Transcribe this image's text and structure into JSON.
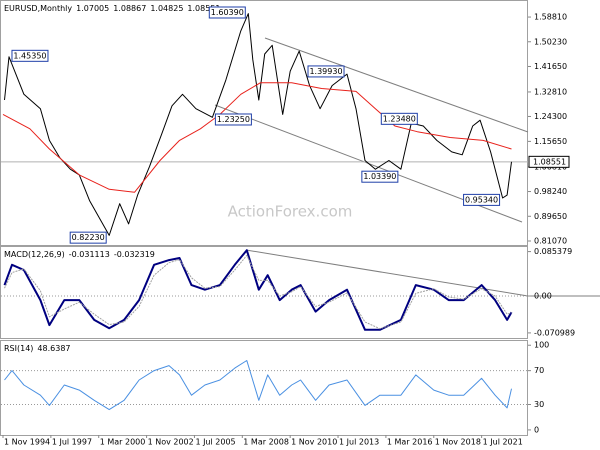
{
  "chart_data": [
    {
      "type": "line",
      "title": "EURUSD,Monthly",
      "watermark": "ActionForex.com",
      "last_bar": {
        "open": 1.07005,
        "high": 1.08867,
        "low": 1.04825
      },
      "xlim": [
        "1994-09-01",
        "2024-02-01"
      ],
      "ylim": [
        0.7968,
        1.6334
      ],
      "yticks": [
        {
          "value": 1.5881,
          "label": "1.58810"
        },
        {
          "value": 1.5023,
          "label": "1.50230"
        },
        {
          "value": 1.4165,
          "label": "1.41650"
        },
        {
          "value": 1.3281,
          "label": "1.32810"
        },
        {
          "value": 1.243,
          "label": "1.24300"
        },
        {
          "value": 1.1565,
          "label": "1.15650"
        },
        {
          "value": 1.0681,
          "label": "1.06810"
        },
        {
          "value": 0.9824,
          "label": "0.98240"
        },
        {
          "value": 0.8965,
          "label": "0.89650"
        },
        {
          "value": 0.8107,
          "label": "0.81070"
        }
      ],
      "x": [
        "1994-12-01",
        "1995-03-01",
        "1996-01-01",
        "1996-12-01",
        "1997-06-01",
        "1998-01-01",
        "1998-08-01",
        "1999-02-01",
        "1999-09-01",
        "2000-10-01",
        "2001-05-01",
        "2001-11-01",
        "2002-05-01",
        "2003-01-01",
        "2003-09-01",
        "2004-04-01",
        "2004-11-01",
        "2005-08-01",
        "2006-07-01",
        "2007-04-01",
        "2008-02-01",
        "2008-07-01",
        "2008-10-01",
        "2009-02-01",
        "2009-06-01",
        "2009-11-01",
        "2010-06-01",
        "2010-11-01",
        "2011-05-01",
        "2011-12-01",
        "2012-07-01",
        "2013-03-01",
        "2014-01-01",
        "2014-07-01",
        "2015-01-01",
        "2015-08-01",
        "2016-05-01",
        "2017-01-01",
        "2017-08-01",
        "2018-04-01",
        "2019-01-01",
        "2019-11-01",
        "2020-06-01",
        "2021-01-01",
        "2021-06-01",
        "2022-01-01",
        "2022-09-01",
        "2022-12-01",
        "2023-03-01"
      ],
      "series": [
        {
          "color": "#000000",
          "values": [
            1.3,
            1.45,
            1.32,
            1.27,
            1.16,
            1.1,
            1.06,
            1.04,
            0.95,
            0.83,
            0.94,
            0.87,
            0.97,
            1.07,
            1.18,
            1.28,
            1.32,
            1.27,
            1.24,
            1.37,
            1.54,
            1.6,
            1.44,
            1.3,
            1.46,
            1.49,
            1.25,
            1.4,
            1.47,
            1.35,
            1.27,
            1.35,
            1.39,
            1.27,
            1.09,
            1.06,
            1.09,
            1.06,
            1.22,
            1.21,
            1.16,
            1.12,
            1.11,
            1.21,
            1.23,
            1.12,
            0.96,
            0.97,
            1.08551
          ]
        },
        {
          "color": "#e8221c",
          "x": [
            "1994-11-01",
            "1996-05-01",
            "1997-06-01",
            "1999-02-01",
            "2000-10-01",
            "2002-03-01",
            "2003-08-01",
            "2004-09-01",
            "2005-11-01",
            "2006-12-01",
            "2008-02-01",
            "2009-03-01",
            "2010-12-01",
            "2012-08-01",
            "2014-07-01",
            "2015-08-01",
            "2016-09-01",
            "2017-12-01",
            "2019-10-01",
            "2021-08-01",
            "2023-03-01"
          ],
          "values": [
            1.25,
            1.2,
            1.13,
            1.04,
            0.99,
            0.98,
            1.09,
            1.16,
            1.2,
            1.25,
            1.32,
            1.36,
            1.36,
            1.34,
            1.33,
            1.27,
            1.21,
            1.19,
            1.17,
            1.16,
            1.13
          ]
        }
      ],
      "annotations": [
        {
          "x": "1995-03-01",
          "y": 1.4535,
          "label": "1.45350"
        },
        {
          "x": "2008-07-01",
          "y": 1.6039,
          "label": "1.60390"
        },
        {
          "x": "2006-07-01",
          "y": 1.2325,
          "label": "1.23250"
        },
        {
          "x": "2014-01-01",
          "y": 1.3993,
          "label": "1.39930"
        },
        {
          "x": "2018-02-01",
          "y": 1.2348,
          "label": "1.23480"
        },
        {
          "x": "2017-01-01",
          "y": 1.0339,
          "label": "1.03390"
        },
        {
          "x": "2022-09-01",
          "y": 0.9534,
          "label": "0.95340"
        },
        {
          "x": "2000-10-01",
          "y": 0.8223,
          "label": "0.82230"
        }
      ]
    },
    {
      "type": "line",
      "title": "MACD(12,26,9)",
      "xlim": [
        "1994-09-01",
        "2024-02-01"
      ],
      "ylim": [
        -0.0808,
        0.0942
      ],
      "yticks": [
        0.085379,
        {
          "value": 0,
          "label": "0.00"
        },
        -0.070989
      ],
      "levels": [
        0
      ],
      "x": [
        "1994-12-01",
        "1995-05-01",
        "1996-01-01",
        "1996-12-01",
        "1997-06-01",
        "1998-04-01",
        "1999-02-01",
        "1999-12-01",
        "2000-10-01",
        "2001-08-01",
        "2002-06-01",
        "2003-04-01",
        "2004-02-01",
        "2004-09-01",
        "2005-05-01",
        "2006-02-01",
        "2006-12-01",
        "2007-10-01",
        "2008-06-01",
        "2009-02-01",
        "2009-08-01",
        "2010-04-01",
        "2010-12-01",
        "2011-06-01",
        "2012-04-01",
        "2013-01-01",
        "2014-01-01",
        "2015-01-01",
        "2015-11-01",
        "2017-01-01",
        "2017-11-01",
        "2018-11-01",
        "2019-09-01",
        "2020-07-01",
        "2021-07-01",
        "2022-04-01",
        "2022-12-01",
        "2023-03-01"
      ],
      "series": [
        {
          "color": "#000080",
          "values": [
            0.021,
            0.06,
            0.05,
            -0.008,
            -0.056,
            -0.008,
            -0.008,
            -0.046,
            -0.062,
            -0.046,
            -0.008,
            0.06,
            0.069,
            0.073,
            0.021,
            0.012,
            0.021,
            0.06,
            0.088,
            0.012,
            0.04,
            -0.008,
            0.012,
            0.021,
            -0.03,
            -0.008,
            0.012,
            -0.065,
            -0.065,
            -0.046,
            0.021,
            0.012,
            -0.008,
            -0.008,
            0.021,
            -0.008,
            -0.046,
            -0.031113
          ]
        },
        {
          "color": "#a0a0a0",
          "values": [
            0.015,
            0.045,
            0.052,
            0.01,
            -0.04,
            -0.025,
            -0.012,
            -0.035,
            -0.055,
            -0.05,
            -0.02,
            0.04,
            0.064,
            0.07,
            0.035,
            0.015,
            0.018,
            0.05,
            0.078,
            0.03,
            0.03,
            0.0,
            0.008,
            0.018,
            -0.02,
            -0.012,
            0.006,
            -0.05,
            -0.063,
            -0.05,
            0.005,
            0.014,
            -0.002,
            -0.006,
            0.014,
            0.0,
            -0.035,
            -0.032319
          ]
        }
      ]
    },
    {
      "type": "line",
      "title": "RSI(14)",
      "xlim": [
        "1994-09-01",
        "2024-02-01"
      ],
      "ylim": [
        -6,
        105
      ],
      "yticks": [
        100,
        70,
        30,
        0
      ],
      "levels": [
        70,
        30
      ],
      "xticks": [
        {
          "value": "1994-11-01",
          "label": "1 Nov 1994"
        },
        {
          "value": "1997-07-01",
          "label": "1 Jul 1997"
        },
        {
          "value": "2000-03-01",
          "label": "1 Mar 2000"
        },
        {
          "value": "2002-11-01",
          "label": "1 Nov 2002"
        },
        {
          "value": "2005-07-01",
          "label": "1 Jul 2005"
        },
        {
          "value": "2008-03-01",
          "label": "1 Mar 2008"
        },
        {
          "value": "2010-11-01",
          "label": "1 Nov 2010"
        },
        {
          "value": "2013-07-01",
          "label": "1 Jul 2013"
        },
        {
          "value": "2016-03-01",
          "label": "1 Mar 2016"
        },
        {
          "value": "2018-11-01",
          "label": "1 Nov 2018"
        },
        {
          "value": "2021-07-01",
          "label": "1 Jul 2021"
        }
      ],
      "x": [
        "1994-12-01",
        "1995-05-01",
        "1996-01-01",
        "1996-12-01",
        "1997-06-01",
        "1998-04-01",
        "1999-02-01",
        "1999-12-01",
        "2000-10-01",
        "2001-08-01",
        "2002-06-01",
        "2003-04-01",
        "2004-02-01",
        "2004-09-01",
        "2005-05-01",
        "2006-02-01",
        "2006-12-01",
        "2007-10-01",
        "2008-06-01",
        "2009-02-01",
        "2009-08-01",
        "2010-04-01",
        "2010-12-01",
        "2011-06-01",
        "2012-04-01",
        "2013-01-01",
        "2014-01-01",
        "2015-01-01",
        "2015-11-01",
        "2017-01-01",
        "2017-11-01",
        "2018-11-01",
        "2019-09-01",
        "2020-07-01",
        "2021-07-01",
        "2022-04-01",
        "2022-12-01",
        "2023-03-01"
      ],
      "series": [
        {
          "color": "#4a90e2",
          "values": [
            59,
            70,
            53,
            41,
            29,
            53,
            47,
            35,
            24,
            35,
            59,
            70,
            76,
            65,
            41,
            53,
            59,
            73,
            82,
            35,
            65,
            41,
            53,
            59,
            35,
            53,
            59,
            29,
            41,
            41,
            65,
            47,
            41,
            41,
            61,
            41,
            26,
            48.6387
          ]
        }
      ]
    }
  ]
}
